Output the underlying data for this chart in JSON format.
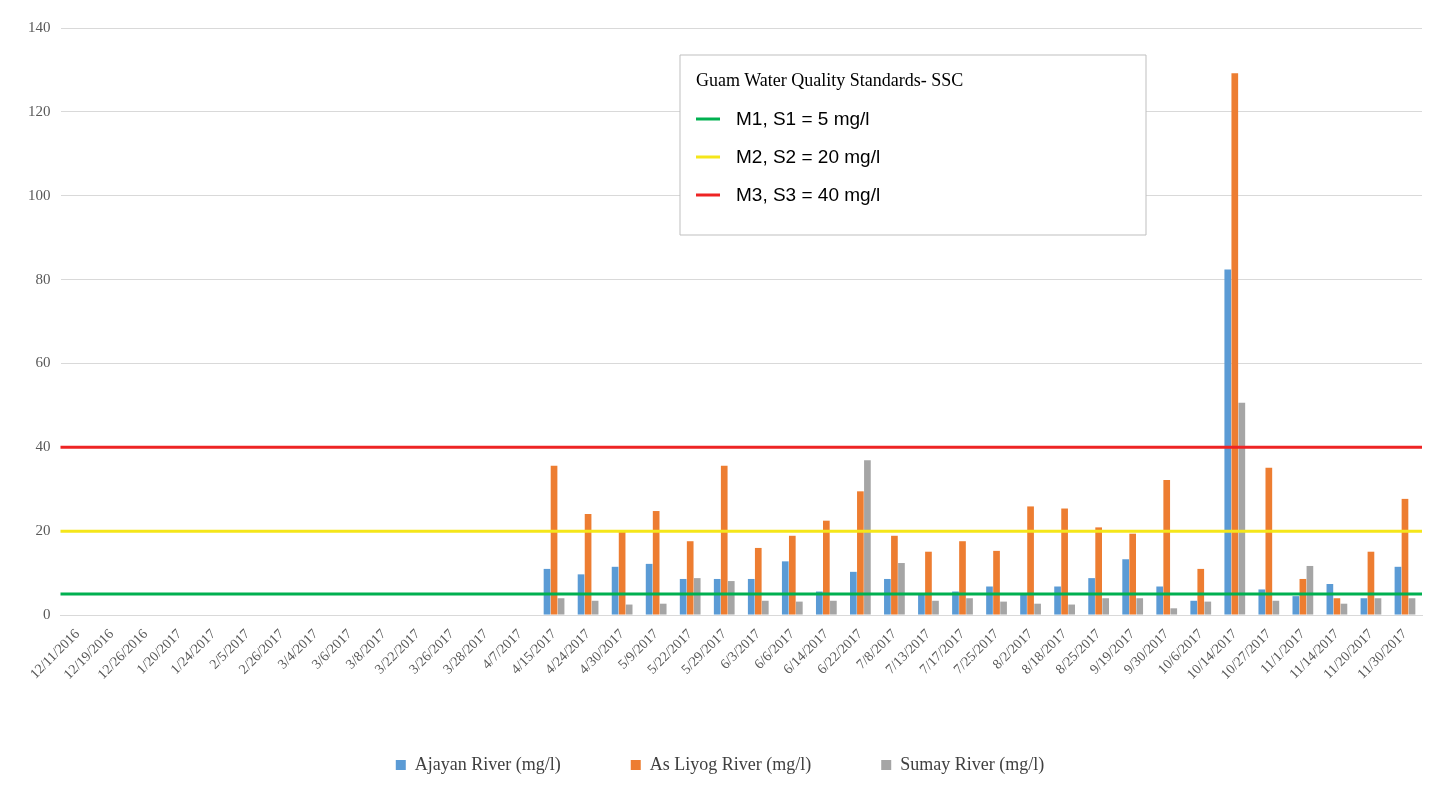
{
  "chart_data": {
    "type": "bar",
    "categories": [
      "12/11/2016",
      "12/19/2016",
      "12/26/2016",
      "1/20/2017",
      "1/24/2017",
      "2/5/2017",
      "2/26/2017",
      "3/4/2017",
      "3/6/2017",
      "3/8/2017",
      "3/22/2017",
      "3/26/2017",
      "3/28/2017",
      "4/7/2017",
      "4/15/2017",
      "4/24/2017",
      "4/30/2017",
      "5/9/2017",
      "5/22/2017",
      "5/29/2017",
      "6/3/2017",
      "6/6/2017",
      "6/14/2017",
      "6/22/2017",
      "7/8/2017",
      "7/13/2017",
      "7/17/2017",
      "7/25/2017",
      "8/2/2017",
      "8/18/2017",
      "8/25/2017",
      "9/19/2017",
      "9/30/2017",
      "10/6/2017",
      "10/14/2017",
      "10/27/2017",
      "11/1/2017",
      "11/14/2017",
      "11/20/2017",
      "11/30/2017"
    ],
    "series": [
      {
        "name": "Ajayan River (mg/l)",
        "color": "#5b9bd5",
        "values": [
          null,
          null,
          null,
          null,
          null,
          null,
          null,
          null,
          null,
          null,
          null,
          null,
          null,
          null,
          11.0,
          9.7,
          11.5,
          12.2,
          8.6,
          8.6,
          8.6,
          12.8,
          5.6,
          10.3,
          8.6,
          5,
          5.6,
          6.8,
          5,
          6.8,
          8.8,
          13.3,
          6.8,
          3.4,
          82.4,
          6.1,
          4.5,
          7.4,
          4,
          11.5
        ]
      },
      {
        "name": "As Liyog River (mg/l)",
        "color": "#ed7d31",
        "values": [
          null,
          null,
          null,
          null,
          null,
          null,
          null,
          null,
          null,
          null,
          null,
          null,
          null,
          null,
          35.6,
          24.1,
          20,
          24.8,
          17.6,
          35.6,
          16.0,
          18.9,
          22.5,
          29.5,
          18.9,
          15.1,
          17.6,
          15.3,
          25.9,
          25.4,
          20.9,
          19.4,
          32.2,
          11.0,
          129.2,
          35.1,
          8.6,
          4,
          15.1,
          27.7
        ]
      },
      {
        "name": "Sumay River (mg/l)",
        "color": "#a5a5a5",
        "values": [
          null,
          null,
          null,
          null,
          null,
          null,
          null,
          null,
          null,
          null,
          null,
          null,
          null,
          null,
          4,
          3.4,
          2.5,
          2.7,
          8.8,
          8.1,
          3.4,
          3.2,
          3.4,
          36.9,
          12.4,
          3.4,
          4,
          3.2,
          2.7,
          2.5,
          4,
          4,
          1.6,
          3.2,
          50.6,
          3.4,
          11.7,
          2.7,
          4,
          4
        ]
      }
    ],
    "ylim": [
      0,
      140
    ],
    "yticks": [
      0,
      20,
      40,
      60,
      80,
      100,
      120,
      140
    ],
    "grid": "y",
    "legend": "bottom",
    "ref_lines": [
      {
        "axis": "y",
        "value": 5,
        "label": "M1, S1 = 5 mg/l",
        "color": "#00b050"
      },
      {
        "axis": "y",
        "value": 20,
        "label": "M2, S2 = 20 mg/l",
        "color": "#f5e61a"
      },
      {
        "axis": "y",
        "value": 40,
        "label": "M3, S3 = 40 mg/l",
        "color": "#ee2424"
      }
    ],
    "annotations": [
      "Guam Water Quality Standards- SSC"
    ]
  }
}
